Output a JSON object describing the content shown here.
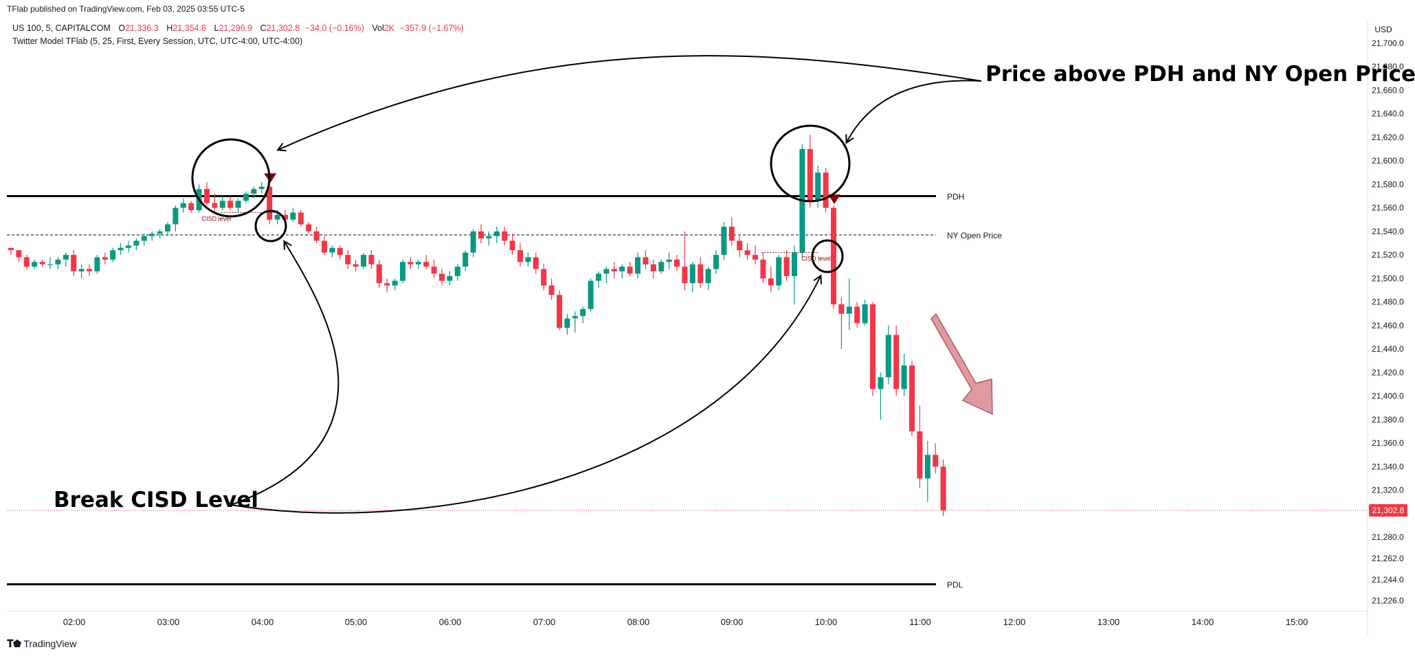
{
  "header": {
    "publisher": "TFlab published on TradingView.com, Feb 03, 2025 03:55 UTC-5",
    "symbol": "US 100, 5, CAPITALCOM",
    "ohlc": [
      {
        "label": "O",
        "value": "21,336.3"
      },
      {
        "label": "H",
        "value": "21,354.8"
      },
      {
        "label": "L",
        "value": "21,296.9"
      },
      {
        "label": "C",
        "value": "21,302.8"
      }
    ],
    "change": "−34.0 (−0.16%)",
    "vol_label": "Vol",
    "vol_value": "2K",
    "vol_change": "−357.9 (−1.67%)",
    "indicator": "Twitter Model TFlab (5, 25, First, Every Session, UTC, UTC-4:00, UTC-4:00)"
  },
  "currency": "USD",
  "footer": {
    "brand": "TradingView"
  },
  "colors": {
    "up": "#089981",
    "down": "#f23645",
    "marker": "#8b0000",
    "arrow": "#d27a82",
    "text": "#131722"
  },
  "chart_data": {
    "type": "candlestick",
    "symbol": "US 100",
    "timeframe": "5",
    "ylim": [
      21217,
      21718
    ],
    "x_ticks": [
      "02:00",
      "03:00",
      "04:00",
      "05:00",
      "06:00",
      "07:00",
      "08:00",
      "09:00",
      "10:00",
      "11:00",
      "12:00",
      "13:00",
      "14:00",
      "15:00"
    ],
    "y_ticks": [
      {
        "value": 21700,
        "label": "21,700.0"
      },
      {
        "value": 21680,
        "label": "21,680.0"
      },
      {
        "value": 21660,
        "label": "21,660.0"
      },
      {
        "value": 21640,
        "label": "21,640.0"
      },
      {
        "value": 21620,
        "label": "21,620.0"
      },
      {
        "value": 21600,
        "label": "21,600.0"
      },
      {
        "value": 21580,
        "label": "21,580.0"
      },
      {
        "value": 21560,
        "label": "21,560.0"
      },
      {
        "value": 21540,
        "label": "21,540.0"
      },
      {
        "value": 21520,
        "label": "21,520.0"
      },
      {
        "value": 21500,
        "label": "21,500.0"
      },
      {
        "value": 21480,
        "label": "21,480.0"
      },
      {
        "value": 21460,
        "label": "21,460.0"
      },
      {
        "value": 21440,
        "label": "21,440.0"
      },
      {
        "value": 21420,
        "label": "21,420.0"
      },
      {
        "value": 21400,
        "label": "21,400.0"
      },
      {
        "value": 21380,
        "label": "21,380.0"
      },
      {
        "value": 21360,
        "label": "21,360.0"
      },
      {
        "value": 21340,
        "label": "21,340.0"
      },
      {
        "value": 21320,
        "label": "21,320.0"
      },
      {
        "value": 21300,
        "label": "21,300.0"
      },
      {
        "value": 21280,
        "label": "21,280.0"
      },
      {
        "value": 21262,
        "label": "21,262.0"
      },
      {
        "value": 21244,
        "label": "21,244.0"
      },
      {
        "value": 21226,
        "label": "21,226.0"
      }
    ],
    "levels": [
      {
        "name": "PDH",
        "value": 21570,
        "style": "solid"
      },
      {
        "name": "NY Open Price",
        "value": 21537,
        "style": "dashed"
      },
      {
        "name": "PDL",
        "value": 21240,
        "style": "solid"
      }
    ],
    "last_price": {
      "value": 21302.8,
      "label": "21,302.8"
    },
    "candles": [
      [
        21526,
        21526,
        21520,
        21524
      ],
      [
        21524,
        21524,
        21514,
        21518
      ],
      [
        21518,
        21520,
        21508,
        21510
      ],
      [
        21510,
        21516,
        21508,
        21514
      ],
      [
        21514,
        21516,
        21510,
        21512
      ],
      [
        21512,
        21518,
        21508,
        21512
      ],
      [
        21512,
        21518,
        21508,
        21516
      ],
      [
        21516,
        21522,
        21510,
        21520
      ],
      [
        21520,
        21524,
        21502,
        21506
      ],
      [
        21506,
        21512,
        21500,
        21508
      ],
      [
        21508,
        21512,
        21502,
        21506
      ],
      [
        21506,
        21520,
        21504,
        21518
      ],
      [
        21518,
        21522,
        21512,
        21516
      ],
      [
        21516,
        21526,
        21514,
        21524
      ],
      [
        21524,
        21530,
        21520,
        21526
      ],
      [
        21526,
        21532,
        21522,
        21528
      ],
      [
        21528,
        21534,
        21524,
        21532
      ],
      [
        21532,
        21538,
        21528,
        21536
      ],
      [
        21536,
        21540,
        21532,
        21538
      ],
      [
        21538,
        21542,
        21534,
        21540
      ],
      [
        21540,
        21548,
        21536,
        21546
      ],
      [
        21546,
        21562,
        21540,
        21560
      ],
      [
        21560,
        21568,
        21556,
        21564
      ],
      [
        21564,
        21566,
        21556,
        21558
      ],
      [
        21558,
        21580,
        21556,
        21576
      ],
      [
        21576,
        21582,
        21562,
        21564
      ],
      [
        21564,
        21572,
        21556,
        21560
      ],
      [
        21560,
        21570,
        21558,
        21566
      ],
      [
        21566,
        21570,
        21558,
        21560
      ],
      [
        21560,
        21568,
        21556,
        21566
      ],
      [
        21566,
        21574,
        21564,
        21572
      ],
      [
        21572,
        21578,
        21568,
        21576
      ],
      [
        21576,
        21582,
        21572,
        21578
      ],
      [
        21578,
        21580,
        21546,
        21550
      ],
      [
        21550,
        21558,
        21546,
        21554
      ],
      [
        21554,
        21558,
        21546,
        21550
      ],
      [
        21550,
        21560,
        21548,
        21556
      ],
      [
        21556,
        21558,
        21544,
        21546
      ],
      [
        21546,
        21548,
        21538,
        21540
      ],
      [
        21540,
        21544,
        21530,
        21532
      ],
      [
        21532,
        21536,
        21520,
        21522
      ],
      [
        21522,
        21528,
        21518,
        21526
      ],
      [
        21526,
        21528,
        21516,
        21520
      ],
      [
        21520,
        21524,
        21508,
        21512
      ],
      [
        21512,
        21516,
        21506,
        21510
      ],
      [
        21510,
        21522,
        21508,
        21520
      ],
      [
        21520,
        21524,
        21508,
        21512
      ],
      [
        21512,
        21516,
        21492,
        21496
      ],
      [
        21496,
        21500,
        21488,
        21494
      ],
      [
        21494,
        21500,
        21490,
        21498
      ],
      [
        21498,
        21516,
        21496,
        21514
      ],
      [
        21514,
        21518,
        21508,
        21512
      ],
      [
        21512,
        21516,
        21508,
        21514
      ],
      [
        21514,
        21520,
        21508,
        21510
      ],
      [
        21510,
        21516,
        21500,
        21504
      ],
      [
        21504,
        21508,
        21494,
        21498
      ],
      [
        21498,
        21506,
        21494,
        21502
      ],
      [
        21502,
        21512,
        21498,
        21510
      ],
      [
        21510,
        21524,
        21506,
        21522
      ],
      [
        21522,
        21542,
        21518,
        21540
      ],
      [
        21540,
        21546,
        21530,
        21534
      ],
      [
        21534,
        21540,
        21528,
        21536
      ],
      [
        21536,
        21544,
        21530,
        21540
      ],
      [
        21540,
        21544,
        21528,
        21532
      ],
      [
        21532,
        21538,
        21520,
        21524
      ],
      [
        21524,
        21530,
        21510,
        21514
      ],
      [
        21514,
        21522,
        21510,
        21518
      ],
      [
        21518,
        21522,
        21504,
        21508
      ],
      [
        21508,
        21512,
        21490,
        21494
      ],
      [
        21494,
        21500,
        21482,
        21486
      ],
      [
        21486,
        21490,
        21456,
        21458
      ],
      [
        21458,
        21470,
        21452,
        21466
      ],
      [
        21466,
        21472,
        21454,
        21468
      ],
      [
        21468,
        21476,
        21462,
        21474
      ],
      [
        21474,
        21500,
        21472,
        21498
      ],
      [
        21498,
        21506,
        21492,
        21504
      ],
      [
        21504,
        21510,
        21496,
        21508
      ],
      [
        21508,
        21514,
        21500,
        21506
      ],
      [
        21506,
        21512,
        21500,
        21510
      ],
      [
        21510,
        21514,
        21502,
        21504
      ],
      [
        21504,
        21522,
        21500,
        21518
      ],
      [
        21518,
        21524,
        21508,
        21512
      ],
      [
        21512,
        21516,
        21500,
        21506
      ],
      [
        21506,
        21516,
        21504,
        21514
      ],
      [
        21514,
        21522,
        21508,
        21516
      ],
      [
        21516,
        21520,
        21506,
        21510
      ],
      [
        21510,
        21540,
        21490,
        21496
      ],
      [
        21496,
        21514,
        21488,
        21512
      ],
      [
        21512,
        21518,
        21492,
        21496
      ],
      [
        21496,
        21510,
        21490,
        21508
      ],
      [
        21508,
        21524,
        21504,
        21520
      ],
      [
        21520,
        21548,
        21516,
        21544
      ],
      [
        21544,
        21552,
        21528,
        21532
      ],
      [
        21532,
        21536,
        21518,
        21524
      ],
      [
        21524,
        21530,
        21516,
        21520
      ],
      [
        21520,
        21528,
        21512,
        21516
      ],
      [
        21516,
        21522,
        21496,
        21500
      ],
      [
        21500,
        21510,
        21488,
        21494
      ],
      [
        21494,
        21520,
        21490,
        21518
      ],
      [
        21518,
        21524,
        21498,
        21502
      ],
      [
        21502,
        21528,
        21478,
        21522
      ],
      [
        21522,
        21614,
        21518,
        21610
      ],
      [
        21610,
        21622,
        21560,
        21566
      ],
      [
        21566,
        21596,
        21560,
        21590
      ],
      [
        21590,
        21594,
        21556,
        21560
      ],
      [
        21560,
        21562,
        21474,
        21478
      ],
      [
        21478,
        21484,
        21440,
        21470
      ],
      [
        21470,
        21500,
        21456,
        21476
      ],
      [
        21476,
        21480,
        21458,
        21462
      ],
      [
        21462,
        21482,
        21460,
        21478
      ],
      [
        21478,
        21480,
        21400,
        21406
      ],
      [
        21406,
        21420,
        21380,
        21416
      ],
      [
        21416,
        21460,
        21410,
        21452
      ],
      [
        21452,
        21460,
        21400,
        21406
      ],
      [
        21406,
        21436,
        21400,
        21426
      ],
      [
        21426,
        21430,
        21366,
        21370
      ],
      [
        21370,
        21392,
        21322,
        21330
      ],
      [
        21330,
        21362,
        21310,
        21350
      ],
      [
        21350,
        21360,
        21334,
        21340
      ],
      [
        21340,
        21346,
        21298,
        21302.8
      ]
    ],
    "cisd_markers": [
      {
        "candle_index": 34,
        "label": "CISD level",
        "level": 21556
      },
      {
        "candle_index": 103,
        "label": "CISD level",
        "level": 21522
      }
    ],
    "signal_markers": [
      {
        "candle_index": 33,
        "type": "bearish"
      },
      {
        "candle_index": 105,
        "type": "bearish"
      }
    ],
    "annotations": [
      {
        "text": "Price above PDH and NY Open Price"
      },
      {
        "text": "Break CISD Level"
      }
    ]
  }
}
